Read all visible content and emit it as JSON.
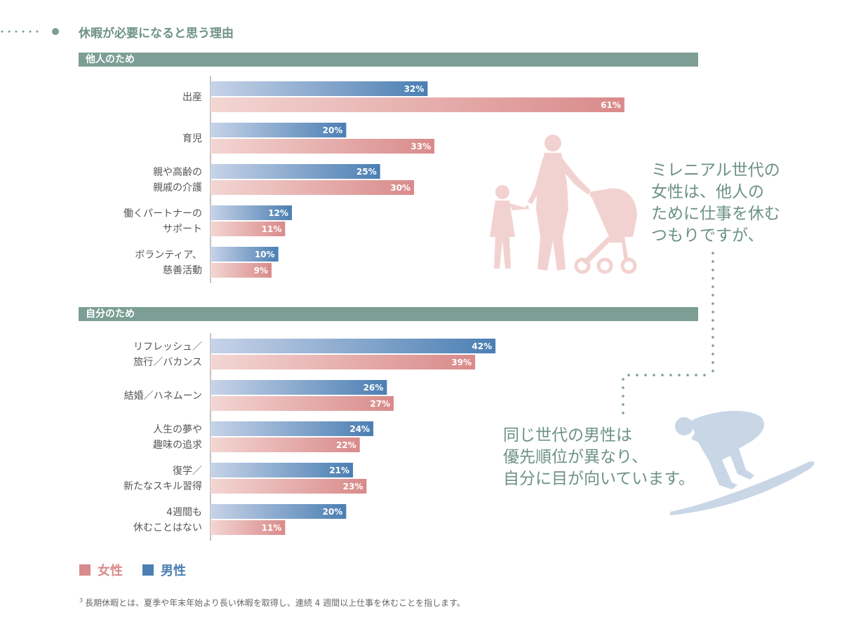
{
  "title": "休暇が必要になると思う理由",
  "legend": {
    "female": "女性",
    "male": "男性"
  },
  "quotes": {
    "women": [
      "ミレニアル世代の",
      "女性は、他人の",
      "ために仕事を休む",
      "つもりですが、"
    ],
    "men": [
      "同じ世代の男性は",
      "優先順位が異なり、",
      "自分に目が向いています。"
    ]
  },
  "footnote": {
    "mark": "3",
    "text": "長期休暇とは、夏季や年末年始より長い休暇を取得し、連続 4 週間以上仕事を休むことを指します。"
  },
  "colors": {
    "female": "#d98a8a",
    "male": "#4b7fb3",
    "accent": "#7c9e95",
    "female_text": "#d98a8a",
    "male_text": "#4b7fb3"
  },
  "chart_data": {
    "type": "bar",
    "orientation": "horizontal",
    "xlim": [
      0,
      100
    ],
    "series_names": [
      "男性",
      "女性"
    ],
    "sections": [
      {
        "label": "他人のため",
        "categories": [
          [
            "出産"
          ],
          [
            "育児"
          ],
          [
            "親や高齢の",
            "親戚の介護"
          ],
          [
            "働くパートナーの",
            "サポート"
          ],
          [
            "ボランティア、",
            "慈善活動"
          ]
        ],
        "male": [
          32,
          20,
          25,
          12,
          10
        ],
        "female": [
          61,
          33,
          30,
          11,
          9
        ]
      },
      {
        "label": "自分のため",
        "categories": [
          [
            "リフレッシュ／",
            "旅行／バカンス"
          ],
          [
            "結婚／ハネムーン"
          ],
          [
            "人生の夢や",
            "趣味の追求"
          ],
          [
            "復学／",
            "新たなスキル習得"
          ],
          [
            "4週間も",
            "休むことはない"
          ]
        ],
        "male": [
          42,
          26,
          24,
          21,
          20
        ],
        "female": [
          39,
          27,
          22,
          23,
          11
        ]
      }
    ]
  }
}
